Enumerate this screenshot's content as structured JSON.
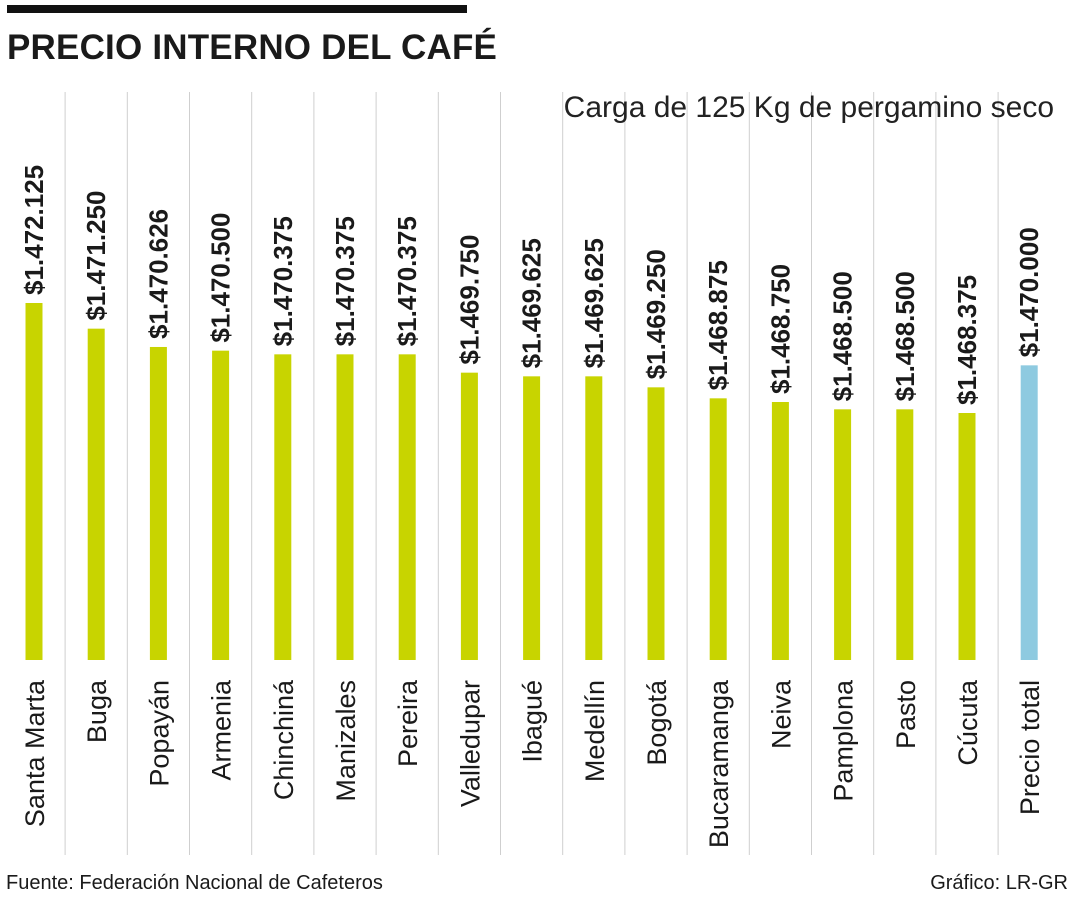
{
  "title": "PRECIO INTERNO DEL CAFÉ",
  "subtitle": "Carga de 125 Kg de pergamino seco",
  "source": "Fuente: Federación Nacional de Cafeteros",
  "credit": "Gráfico: LR-GR",
  "colors": {
    "bar": "#c8d400",
    "total_bar": "#8ecae0",
    "grid": "#cfcfcf",
    "text": "#1a1a1a"
  },
  "chart_data": {
    "type": "bar",
    "orientation": "vertical",
    "title": "PRECIO INTERNO DEL CAFÉ",
    "subtitle": "Carga de 125 Kg de pergamino seco",
    "categories": [
      "Santa Marta",
      "Buga",
      "Popayán",
      "Armenia",
      "Chinchiná",
      "Manizales",
      "Pereira",
      "Valledupar",
      "Ibagué",
      "Medellín",
      "Bogotá",
      "Bucaramanga",
      "Neiva",
      "Pamplona",
      "Pasto",
      "Cúcuta",
      "Precio total"
    ],
    "values": [
      1472125,
      1471250,
      1470626,
      1470500,
      1470375,
      1470375,
      1470375,
      1469750,
      1469625,
      1469625,
      1469250,
      1468875,
      1468750,
      1468500,
      1468500,
      1468375,
      1470000
    ],
    "labels": [
      "$1.472.125",
      "$1.471.250",
      "$1.470.626",
      "$1.470.500",
      "$1.470.375",
      "$1.470.375",
      "$1.470.375",
      "$1.469.750",
      "$1.469.625",
      "$1.469.625",
      "$1.469.250",
      "$1.468.875",
      "$1.468.750",
      "$1.468.500",
      "$1.468.500",
      "$1.468.375",
      "$1.470.000"
    ],
    "highlight_last": true,
    "grid": true,
    "value_label_rotation": -90,
    "category_label_rotation": -90
  }
}
